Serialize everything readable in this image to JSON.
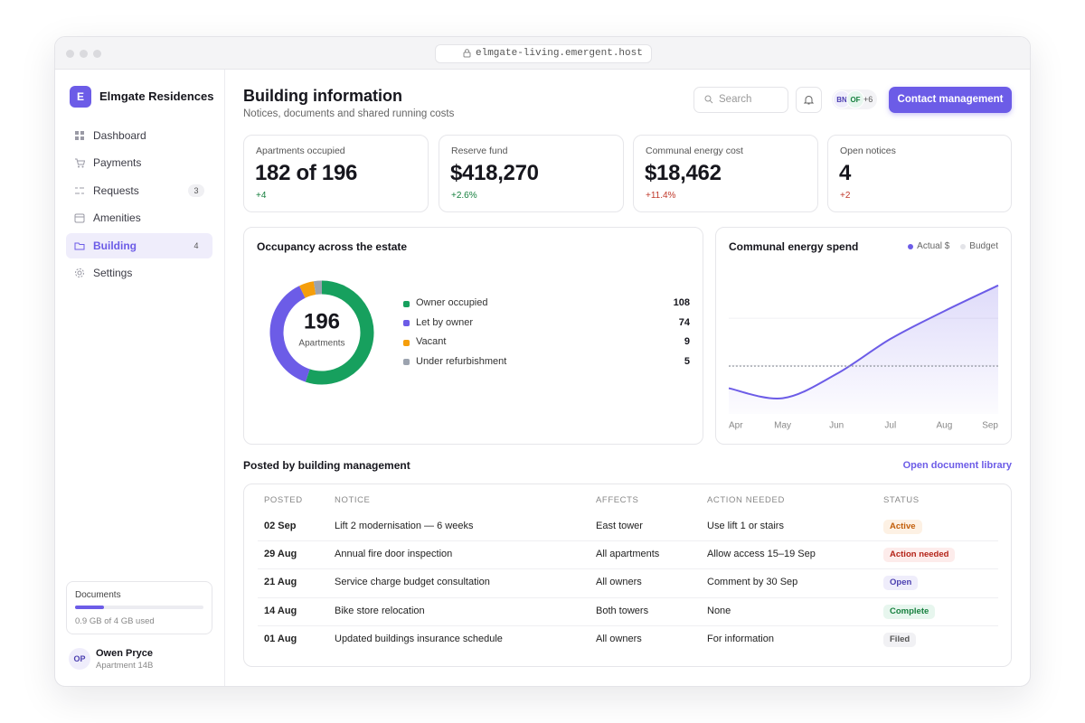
{
  "browser": {
    "url": "elmgate-living.emergent.host"
  },
  "sidebar": {
    "brand_initial": "E",
    "brand": "Elmgate Residences",
    "nav": [
      {
        "label": "Dashboard"
      },
      {
        "label": "Payments"
      },
      {
        "label": "Requests",
        "badge": 3
      },
      {
        "label": "Amenities"
      },
      {
        "label": "Building",
        "badge": 4,
        "active": true
      },
      {
        "label": "Settings"
      }
    ],
    "storage": {
      "label": "Documents",
      "used": 0.9,
      "total": 4,
      "text": "0.9 GB of 4 GB used"
    },
    "user": {
      "initials": "OP",
      "name": "Owen Pryce",
      "unit": "Apartment 14B"
    }
  },
  "header": {
    "title": "Building information",
    "subtitle": "Notices, documents and shared running costs",
    "search_placeholder": "Search",
    "avatars": [
      "BN",
      "OF"
    ],
    "more": "+6",
    "button": "Contact management"
  },
  "kpis": [
    {
      "label": "Apartments occupied",
      "value": "182 of 196",
      "delta": "+4",
      "tone": "positive"
    },
    {
      "label": "Reserve fund",
      "value": "$418,270",
      "delta": "+2.6%",
      "tone": "positive"
    },
    {
      "label": "Communal energy cost",
      "value": "$18,462",
      "delta": "+11.4%",
      "tone": "negative"
    },
    {
      "label": "Open notices",
      "value": "4",
      "delta": "+2",
      "tone": "negative"
    }
  ],
  "occupancy_chart": {
    "type": "donut",
    "title": "Occupancy across the estate",
    "center_value": 196,
    "center_label": "Apartments",
    "series": [
      {
        "name": "Owner occupied",
        "color": "#17a05e",
        "value": 108
      },
      {
        "name": "Let by owner",
        "color": "#6c5ce7",
        "value": 74
      },
      {
        "name": "Vacant",
        "color": "#f59e0b",
        "value": 9
      },
      {
        "name": "Under refurbishment",
        "color": "#9ca3af",
        "value": 5
      }
    ]
  },
  "energy_chart": {
    "type": "line",
    "title": "Communal energy spend",
    "categories": [
      "Apr",
      "May",
      "Jun",
      "Jul",
      "Aug",
      "Sep"
    ],
    "series": [
      {
        "name": "Actual $",
        "color": "#6c5ce7",
        "values": [
          2360,
          2220,
          2560,
          3050,
          3440,
          3800
        ],
        "fill": true
      },
      {
        "name": "Budget",
        "color": "#8a8f98",
        "legend_color": "#e3e4e8",
        "values": [
          2670,
          2670,
          2670,
          2670,
          2670,
          2670
        ],
        "dotted": true
      }
    ],
    "ylim": [
      2000,
      4000
    ]
  },
  "table": {
    "title": "Posted by building management",
    "link": "Open document library",
    "columns": [
      "POSTED",
      "NOTICE",
      "AFFECTS",
      "ACTION NEEDED",
      "STATUS"
    ],
    "rows": [
      {
        "posted": "02 Sep",
        "notice": "Lift 2 modernisation — 6 weeks",
        "affects": "East tower",
        "action": "Use lift 1 or stairs",
        "status": "Active",
        "tone": "orange"
      },
      {
        "posted": "29 Aug",
        "notice": "Annual fire door inspection",
        "affects": "All apartments",
        "action": "Allow access 15–19 Sep",
        "status": "Action needed",
        "tone": "red"
      },
      {
        "posted": "21 Aug",
        "notice": "Service charge budget consultation",
        "affects": "All owners",
        "action": "Comment by 30 Sep",
        "status": "Open",
        "tone": "purple"
      },
      {
        "posted": "14 Aug",
        "notice": "Bike store relocation",
        "affects": "Both towers",
        "action": "None",
        "status": "Complete",
        "tone": "green"
      },
      {
        "posted": "01 Aug",
        "notice": "Updated buildings insurance schedule",
        "affects": "All owners",
        "action": "For information",
        "status": "Filed",
        "tone": "grey"
      }
    ]
  }
}
